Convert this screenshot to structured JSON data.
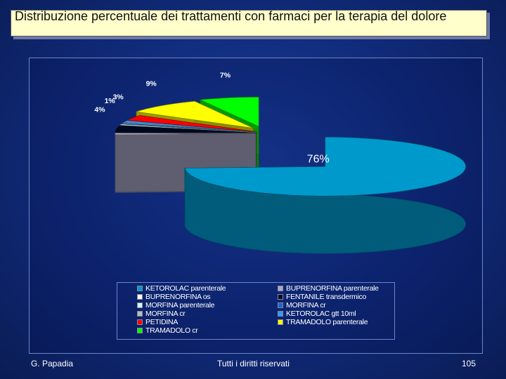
{
  "title": "Distribuzione  percentuale dei trattamenti con farmaci per la terapia del dolore",
  "footer": {
    "author": "G. Papadia",
    "rights": "Tutti i diritti riservati",
    "page": "105"
  },
  "chart_data": {
    "type": "pie",
    "style": "3d exploded",
    "legend_position": "bottom",
    "slices": [
      {
        "label": "KETOROLAC parenterale",
        "value": 76,
        "value_label": "76%",
        "color": "#0099cc"
      },
      {
        "label": "BUPRENORFINA parenterale",
        "value": 0.5,
        "value_label": "",
        "color": "#aaaacc"
      },
      {
        "label": "BUPRENORFINA os",
        "value": 0.5,
        "value_label": "",
        "color": "#ffffff"
      },
      {
        "label": "FENTANILE transdermico",
        "value": 4,
        "value_label": "4%",
        "color": "#000820"
      },
      {
        "label": "MORFINA parenterale",
        "value": 0.5,
        "value_label": "",
        "color": "#ccffff"
      },
      {
        "label": "MORFINA  cr",
        "value": 0.5,
        "value_label": "",
        "color": "#1a66cc"
      },
      {
        "label": "MORFINA  cr",
        "value": 0.5,
        "value_label": "",
        "color": "#bbbbbb"
      },
      {
        "label": "KETOROLAC gtt 10ml",
        "value": 1,
        "value_label": "1%",
        "color": "#3399ff"
      },
      {
        "label": "PETIDINA",
        "value": 3,
        "value_label": "3%",
        "color": "#ff0000"
      },
      {
        "label": "TRAMADOLO parenterale",
        "value": 9,
        "value_label": "9%",
        "color": "#ffff00"
      },
      {
        "label": "TRAMADOLO cr",
        "value": 7,
        "value_label": "7%",
        "color": "#00ff00"
      }
    ],
    "legend": [
      {
        "label": "KETOROLAC parenterale",
        "color": "#0099cc"
      },
      {
        "label": "BUPRENORFINA parenterale",
        "color": "#aaaacc"
      },
      {
        "label": "BUPRENORFINA os",
        "color": "#ffffff"
      },
      {
        "label": "FENTANILE transdermico",
        "color": "#000820"
      },
      {
        "label": "MORFINA parenterale",
        "color": "#ccffff"
      },
      {
        "label": "MORFINA  cr",
        "color": "#1a66cc"
      },
      {
        "label": "MORFINA  cr",
        "color": "#bbbbbb"
      },
      {
        "label": "KETOROLAC gtt 10ml",
        "color": "#3399ff"
      },
      {
        "label": "PETIDINA",
        "color": "#ff0000"
      },
      {
        "label": "TRAMADOLO parenterale",
        "color": "#ffff00"
      },
      {
        "label": "TRAMADOLO cr",
        "color": "#00ff00"
      }
    ]
  }
}
